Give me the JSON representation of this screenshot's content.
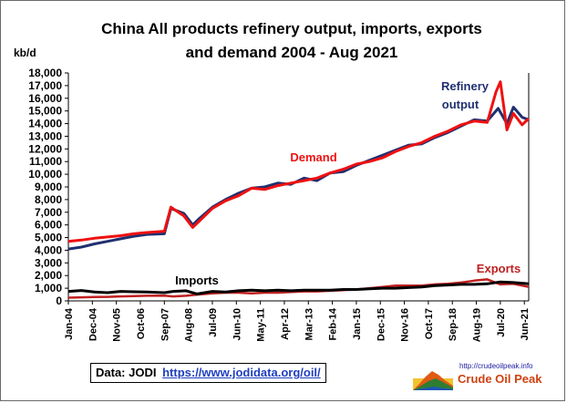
{
  "chart_data": {
    "type": "line",
    "title_line1": "China All products refinery output, imports, exports",
    "title_line2": "and demand 2004 - Aug 2021",
    "ylabel": "kb/d",
    "ylim": [
      0,
      18000
    ],
    "yticks": [
      0,
      1000,
      2000,
      3000,
      4000,
      5000,
      6000,
      7000,
      8000,
      9000,
      10000,
      11000,
      12000,
      13000,
      14000,
      15000,
      16000,
      17000,
      18000
    ],
    "ytick_labels": [
      "0",
      "1,000",
      "2,000",
      "3,000",
      "4,000",
      "5,000",
      "6,000",
      "7,000",
      "8,000",
      "9,000",
      "10,000",
      "11,000",
      "12,000",
      "13,000",
      "14,000",
      "15,000",
      "16,000",
      "17,000",
      "18,000"
    ],
    "x_start": "2004-01",
    "x_end": "2021-08",
    "xtick_labels": [
      "Jan-04",
      "Dec-04",
      "Nov-05",
      "Oct-06",
      "Sep-07",
      "Aug-08",
      "Jul-09",
      "Jun-10",
      "May-11",
      "Apr-12",
      "Mar-13",
      "Feb-14",
      "Jan-15",
      "Dec-15",
      "Nov-16",
      "Oct-17",
      "Sep-18",
      "Aug-19",
      "Jul-20",
      "Jun-21"
    ],
    "grid": false,
    "series": [
      {
        "name": "Refinery output",
        "label_lines": [
          "Refinery",
          "output"
        ],
        "color": "#1f3070",
        "points": [
          [
            "2004-01",
            4100
          ],
          [
            "2004-07",
            4250
          ],
          [
            "2005-01",
            4500
          ],
          [
            "2005-07",
            4700
          ],
          [
            "2006-01",
            4900
          ],
          [
            "2006-07",
            5100
          ],
          [
            "2007-01",
            5250
          ],
          [
            "2007-09",
            5300
          ],
          [
            "2007-12",
            7300
          ],
          [
            "2008-06",
            6900
          ],
          [
            "2008-10",
            6000
          ],
          [
            "2009-01",
            6500
          ],
          [
            "2009-07",
            7400
          ],
          [
            "2010-01",
            8000
          ],
          [
            "2010-07",
            8500
          ],
          [
            "2011-01",
            8900
          ],
          [
            "2011-07",
            9000
          ],
          [
            "2012-01",
            9300
          ],
          [
            "2012-07",
            9200
          ],
          [
            "2013-01",
            9700
          ],
          [
            "2013-07",
            9500
          ],
          [
            "2014-01",
            10100
          ],
          [
            "2014-07",
            10200
          ],
          [
            "2015-01",
            10700
          ],
          [
            "2015-07",
            11100
          ],
          [
            "2016-01",
            11500
          ],
          [
            "2016-07",
            11900
          ],
          [
            "2017-01",
            12300
          ],
          [
            "2017-07",
            12400
          ],
          [
            "2018-01",
            12900
          ],
          [
            "2018-07",
            13300
          ],
          [
            "2019-01",
            13800
          ],
          [
            "2019-07",
            14300
          ],
          [
            "2020-01",
            14200
          ],
          [
            "2020-06",
            15200
          ],
          [
            "2020-10",
            14000
          ],
          [
            "2021-01",
            15300
          ],
          [
            "2021-05",
            14500
          ],
          [
            "2021-08",
            14300
          ]
        ]
      },
      {
        "name": "Demand",
        "color": "#ee1111",
        "points": [
          [
            "2004-01",
            4700
          ],
          [
            "2004-07",
            4800
          ],
          [
            "2005-01",
            4950
          ],
          [
            "2005-07",
            5050
          ],
          [
            "2006-01",
            5150
          ],
          [
            "2006-07",
            5300
          ],
          [
            "2007-01",
            5400
          ],
          [
            "2007-09",
            5500
          ],
          [
            "2007-12",
            7400
          ],
          [
            "2008-06",
            6700
          ],
          [
            "2008-10",
            5800
          ],
          [
            "2009-01",
            6300
          ],
          [
            "2009-07",
            7300
          ],
          [
            "2010-01",
            7900
          ],
          [
            "2010-07",
            8300
          ],
          [
            "2011-01",
            8900
          ],
          [
            "2011-07",
            8800
          ],
          [
            "2012-01",
            9100
          ],
          [
            "2012-07",
            9300
          ],
          [
            "2013-01",
            9500
          ],
          [
            "2013-07",
            9700
          ],
          [
            "2014-01",
            10100
          ],
          [
            "2014-07",
            10400
          ],
          [
            "2015-01",
            10800
          ],
          [
            "2015-07",
            11000
          ],
          [
            "2016-01",
            11300
          ],
          [
            "2016-07",
            11800
          ],
          [
            "2017-01",
            12200
          ],
          [
            "2017-07",
            12500
          ],
          [
            "2018-01",
            13000
          ],
          [
            "2018-07",
            13400
          ],
          [
            "2019-01",
            13900
          ],
          [
            "2019-07",
            14200
          ],
          [
            "2020-01",
            14100
          ],
          [
            "2020-05",
            16500
          ],
          [
            "2020-07",
            17300
          ],
          [
            "2020-10",
            13500
          ],
          [
            "2021-01",
            14800
          ],
          [
            "2021-05",
            13900
          ],
          [
            "2021-08",
            14400
          ]
        ]
      },
      {
        "name": "Imports",
        "color": "#000000",
        "points": [
          [
            "2004-01",
            750
          ],
          [
            "2004-07",
            820
          ],
          [
            "2005-01",
            700
          ],
          [
            "2005-07",
            650
          ],
          [
            "2006-01",
            750
          ],
          [
            "2006-07",
            720
          ],
          [
            "2007-01",
            700
          ],
          [
            "2007-09",
            650
          ],
          [
            "2008-01",
            750
          ],
          [
            "2008-07",
            800
          ],
          [
            "2008-12",
            550
          ],
          [
            "2009-07",
            750
          ],
          [
            "2010-01",
            700
          ],
          [
            "2010-07",
            800
          ],
          [
            "2011-01",
            850
          ],
          [
            "2011-07",
            800
          ],
          [
            "2012-01",
            850
          ],
          [
            "2012-07",
            800
          ],
          [
            "2013-01",
            850
          ],
          [
            "2013-07",
            850
          ],
          [
            "2014-01",
            850
          ],
          [
            "2014-07",
            900
          ],
          [
            "2015-01",
            900
          ],
          [
            "2015-07",
            950
          ],
          [
            "2016-01",
            1000
          ],
          [
            "2016-07",
            1000
          ],
          [
            "2017-01",
            1050
          ],
          [
            "2017-07",
            1100
          ],
          [
            "2018-01",
            1200
          ],
          [
            "2018-07",
            1250
          ],
          [
            "2019-01",
            1300
          ],
          [
            "2019-07",
            1300
          ],
          [
            "2020-01",
            1350
          ],
          [
            "2020-07",
            1500
          ],
          [
            "2021-01",
            1450
          ],
          [
            "2021-08",
            1350
          ]
        ]
      },
      {
        "name": "Exports",
        "color": "#c02020",
        "points": [
          [
            "2004-01",
            250
          ],
          [
            "2004-07",
            280
          ],
          [
            "2005-01",
            300
          ],
          [
            "2005-07",
            320
          ],
          [
            "2006-01",
            350
          ],
          [
            "2006-07",
            380
          ],
          [
            "2007-01",
            400
          ],
          [
            "2007-09",
            420
          ],
          [
            "2008-01",
            350
          ],
          [
            "2008-07",
            400
          ],
          [
            "2008-12",
            500
          ],
          [
            "2009-07",
            600
          ],
          [
            "2010-01",
            650
          ],
          [
            "2010-07",
            650
          ],
          [
            "2011-01",
            600
          ],
          [
            "2011-07",
            650
          ],
          [
            "2012-01",
            650
          ],
          [
            "2012-07",
            700
          ],
          [
            "2013-01",
            750
          ],
          [
            "2013-07",
            750
          ],
          [
            "2014-01",
            800
          ],
          [
            "2014-07",
            850
          ],
          [
            "2015-01",
            900
          ],
          [
            "2015-07",
            1000
          ],
          [
            "2016-01",
            1100
          ],
          [
            "2016-07",
            1200
          ],
          [
            "2017-01",
            1200
          ],
          [
            "2017-07",
            1200
          ],
          [
            "2018-01",
            1300
          ],
          [
            "2018-07",
            1350
          ],
          [
            "2019-01",
            1450
          ],
          [
            "2019-07",
            1600
          ],
          [
            "2020-01",
            1700
          ],
          [
            "2020-07",
            1300
          ],
          [
            "2021-01",
            1350
          ],
          [
            "2021-08",
            1100
          ]
        ]
      }
    ]
  },
  "source_box": {
    "label": "Data: JODI",
    "url": "https://www.jodidata.org/oil/"
  },
  "logo": {
    "url": "http://crudeoilpeak.info",
    "name": "Crude Oil Peak"
  }
}
